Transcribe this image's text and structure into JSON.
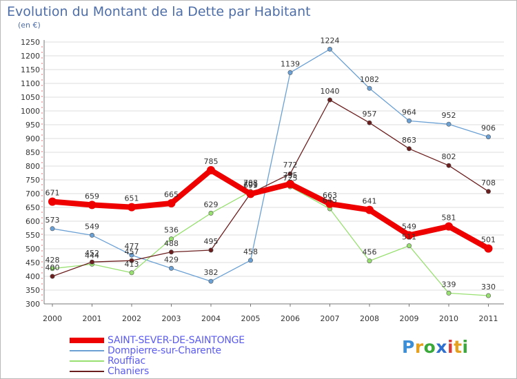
{
  "title": "Evolution du Montant de la Dette par Habitant",
  "subtitle": "(en €)",
  "logo": {
    "letters": [
      "P",
      "r",
      "o",
      "x",
      "i",
      "t",
      "i"
    ],
    "colors": [
      "#3c8fd6",
      "#e6a020",
      "#3aa83a",
      "#2f6fcf",
      "#d93a3a",
      "#e6a020",
      "#3aa83a"
    ]
  },
  "chart_data": {
    "type": "line",
    "title": "Evolution du Montant de la Dette par Habitant",
    "subtitle": "(en €)",
    "xlabel": "",
    "ylabel": "",
    "x": [
      "2000",
      "2001",
      "2002",
      "2003",
      "2004",
      "2005",
      "2006",
      "2007",
      "2008",
      "2009",
      "2010",
      "2011"
    ],
    "ylim": [
      300,
      1250
    ],
    "yticks": [
      300,
      350,
      400,
      450,
      500,
      550,
      600,
      650,
      700,
      750,
      800,
      850,
      900,
      950,
      1000,
      1050,
      1100,
      1150,
      1200,
      1250
    ],
    "grid": true,
    "legend_position": "bottom-left",
    "series": [
      {
        "name": "SAINT-SEVER-DE-SAINTONGE",
        "color": "#ee0000",
        "values": [
          671,
          659,
          651,
          665,
          785,
          699,
          735,
          663,
          641,
          549,
          581,
          501
        ],
        "labels": [
          "671",
          "659",
          "651",
          "665",
          "785",
          "699",
          "735",
          "663",
          "641",
          "549",
          "581",
          "501"
        ]
      },
      {
        "name": "Dompierre-sur-Charente",
        "color": "#6aa0d4",
        "values": [
          573,
          549,
          477,
          429,
          382,
          458,
          1139,
          1224,
          1082,
          964,
          952,
          906
        ],
        "labels": [
          "573",
          "549",
          "477",
          "429",
          "382",
          "458",
          "1139",
          "1224",
          "1082",
          "964",
          "952",
          "906"
        ]
      },
      {
        "name": "Rouffiac",
        "color": "#98e070",
        "values": [
          428,
          444,
          413,
          536,
          629,
          708,
          725,
          645,
          456,
          511,
          339,
          330
        ],
        "labels": [
          "428",
          "444",
          "413",
          "536",
          "629",
          "708",
          "725",
          "645",
          "456",
          "511",
          "339",
          "330"
        ]
      },
      {
        "name": "Chaniers",
        "color": "#6b1e1e",
        "values": [
          400,
          452,
          457,
          488,
          495,
          701,
          772,
          1040,
          957,
          863,
          802,
          708
        ],
        "labels": [
          "400",
          "452",
          "457",
          "488",
          "495",
          "701",
          "772",
          "1040",
          "957",
          "863",
          "802",
          "708"
        ]
      }
    ]
  }
}
